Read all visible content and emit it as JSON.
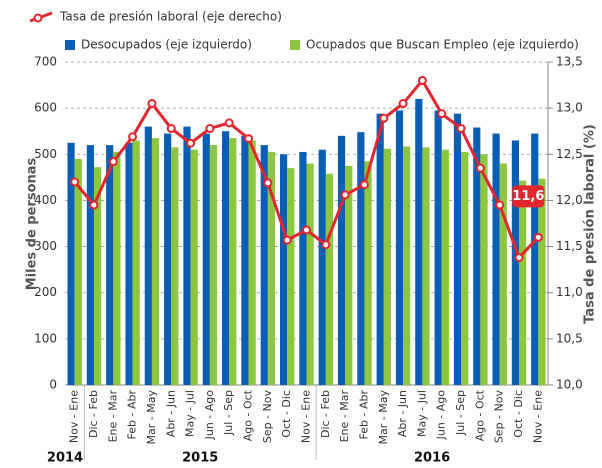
{
  "chart_data": {
    "type": "bar",
    "y_label": "Miles de personas",
    "y2_label": "Tasa de presión laboral (%)",
    "categories": [
      "Nov - Ene",
      "Dic - Feb",
      "Ene - Mar",
      "Feb - Abr",
      "Mar - May",
      "Abr - Jun",
      "May - Jul",
      "Jun - Ago",
      "Jul - Sep",
      "Ago - Oct",
      "Sep - Nov",
      "Oct - Dic",
      "Nov - Ene",
      "Dic - Feb",
      "Ene - Mar",
      "Feb - Abr",
      "Mar - May",
      "Abr - Jun",
      "May - Jul",
      "Jun - Ago",
      "Jul - Sep",
      "Ago - Oct",
      "Sep - Nov",
      "Oct - Dic",
      "Nov - Ene"
    ],
    "x_groups": [
      {
        "label": "2014",
        "categories": [
          0,
          0
        ]
      },
      {
        "label": "2015",
        "categories": [
          1,
          12
        ]
      },
      {
        "label": "2016",
        "categories": [
          13,
          24
        ]
      }
    ],
    "series": [
      {
        "name": "Tasa de presión laboral (eje derecho)",
        "type": "line",
        "axis": "y2",
        "color": "#e3262e",
        "values": [
          12.2,
          11.95,
          12.42,
          12.69,
          13.05,
          12.78,
          12.62,
          12.78,
          12.84,
          12.67,
          12.19,
          11.57,
          11.68,
          11.52,
          12.06,
          12.17,
          12.89,
          13.05,
          13.3,
          12.94,
          12.78,
          12.35,
          11.95,
          11.38,
          11.6
        ],
        "value_labels": [
          null,
          null,
          null,
          null,
          null,
          null,
          null,
          null,
          null,
          null,
          null,
          null,
          null,
          null,
          null,
          null,
          null,
          null,
          null,
          null,
          null,
          null,
          null,
          null,
          "11,6"
        ]
      },
      {
        "name": "Desocupados (eje izquierdo)",
        "type": "bar",
        "color": "#0a5fb4",
        "values": [
          525,
          520,
          520,
          525,
          560,
          545,
          560,
          545,
          550,
          540,
          520,
          500,
          505,
          510,
          540,
          548,
          588,
          595,
          620,
          595,
          588,
          558,
          545,
          530,
          545
        ]
      },
      {
        "name": "Ocupados que Buscan Empleo (eje izquierdo)",
        "type": "bar",
        "color": "#8dc63f",
        "values": [
          490,
          472,
          505,
          530,
          535,
          515,
          510,
          520,
          535,
          530,
          505,
          470,
          480,
          458,
          475,
          485,
          512,
          517,
          515,
          510,
          505,
          500,
          480,
          443,
          447
        ]
      }
    ],
    "ylim": [
      0,
      700
    ],
    "yticks": [
      0,
      100,
      200,
      300,
      400,
      500,
      600,
      700
    ],
    "y2lim": [
      10,
      13.5
    ],
    "y2ticks": [
      {
        "value": 10,
        "label": "10,0"
      },
      {
        "value": 10.5,
        "label": "10,5"
      },
      {
        "value": 11,
        "label": "11,0"
      },
      {
        "value": 11.5,
        "label": "11,5"
      },
      {
        "value": 12,
        "label": "12,0"
      },
      {
        "value": 12.5,
        "label": "12,5"
      },
      {
        "value": 13,
        "label": "13,0"
      },
      {
        "value": 13.5,
        "label": "13,5"
      }
    ],
    "grid": true
  }
}
